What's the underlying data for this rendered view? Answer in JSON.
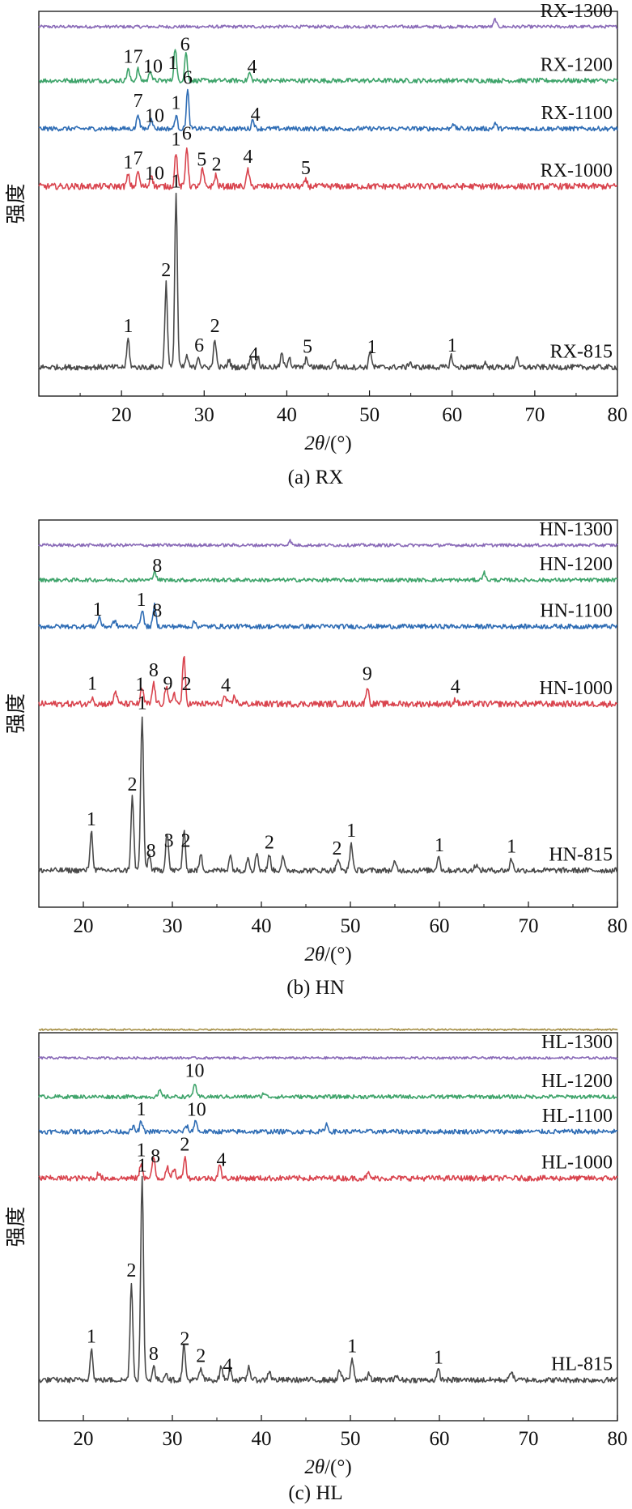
{
  "colors": {
    "ink": "#111111",
    "gray": "#4a4a4a",
    "red": "#d9444e",
    "blue": "#2f6db5",
    "green": "#3fa46b",
    "purple": "#8a6bb8",
    "tan": "#a8924a"
  },
  "chart_data": [
    {
      "type": "line",
      "panel_caption": "(a) RX",
      "ylabel": "强度",
      "xlabel_symbol": "2θ",
      "xlabel_unit": "/(°)",
      "xlim": [
        10,
        80
      ],
      "xticks": [
        20,
        30,
        40,
        50,
        60,
        70,
        80
      ],
      "series": [
        {
          "name": "RX-1300",
          "color": "purple",
          "base": 0.04,
          "scale": 0.0,
          "noise": 0.004,
          "peaks": [
            {
              "x": 65.2,
              "h": 0.02
            }
          ]
        },
        {
          "name": "RX-1200",
          "color": "green",
          "base": 0.18,
          "scale": 1.0,
          "noise": 0.006,
          "peaks": [
            {
              "x": 20.8,
              "h": 0.03
            },
            {
              "x": 22.0,
              "h": 0.03
            },
            {
              "x": 23.5,
              "h": 0.028
            },
            {
              "x": 26.5,
              "h": 0.085
            },
            {
              "x": 27.8,
              "h": 0.075
            },
            {
              "x": 35.5,
              "h": 0.02
            }
          ]
        },
        {
          "name": "RX-1100",
          "color": "blue",
          "base": 0.305,
          "scale": 1.0,
          "noise": 0.006,
          "peaks": [
            {
              "x": 22.0,
              "h": 0.04
            },
            {
              "x": 23.6,
              "h": 0.03
            },
            {
              "x": 26.6,
              "h": 0.035
            },
            {
              "x": 28.0,
              "h": 0.1
            },
            {
              "x": 35.9,
              "h": 0.025
            },
            {
              "x": 60.1,
              "h": 0.015
            },
            {
              "x": 65.2,
              "h": 0.015
            }
          ]
        },
        {
          "name": "RX-1000",
          "color": "red",
          "base": 0.455,
          "scale": 1.0,
          "noise": 0.008,
          "peaks": [
            {
              "x": 20.8,
              "h": 0.03
            },
            {
              "x": 22.0,
              "h": 0.04
            },
            {
              "x": 23.6,
              "h": 0.035
            },
            {
              "x": 26.6,
              "h": 0.09
            },
            {
              "x": 27.9,
              "h": 0.105
            },
            {
              "x": 29.8,
              "h": 0.045
            },
            {
              "x": 31.4,
              "h": 0.03
            },
            {
              "x": 35.3,
              "h": 0.045
            },
            {
              "x": 42.3,
              "h": 0.015
            }
          ]
        },
        {
          "name": "RX-815",
          "color": "gray",
          "base": 0.925,
          "scale": 1.0,
          "noise": 0.007,
          "peaks": [
            {
              "x": 20.8,
              "h": 0.075
            },
            {
              "x": 25.4,
              "h": 0.22
            },
            {
              "x": 26.6,
              "h": 0.45
            },
            {
              "x": 27.9,
              "h": 0.03
            },
            {
              "x": 29.3,
              "h": 0.03
            },
            {
              "x": 31.3,
              "h": 0.075
            },
            {
              "x": 33.0,
              "h": 0.02
            },
            {
              "x": 35.6,
              "h": 0.025
            },
            {
              "x": 36.5,
              "h": 0.03
            },
            {
              "x": 39.4,
              "h": 0.035
            },
            {
              "x": 40.3,
              "h": 0.03
            },
            {
              "x": 42.4,
              "h": 0.025
            },
            {
              "x": 45.8,
              "h": 0.02
            },
            {
              "x": 50.1,
              "h": 0.045
            },
            {
              "x": 54.9,
              "h": 0.015
            },
            {
              "x": 59.9,
              "h": 0.03
            },
            {
              "x": 64.0,
              "h": 0.012
            },
            {
              "x": 67.8,
              "h": 0.025
            }
          ]
        }
      ],
      "annotations": [
        {
          "series": "RX-1200",
          "items": [
            {
              "x": 20.8,
              "t": "1"
            },
            {
              "x": 22.0,
              "t": "7"
            },
            {
              "x": 23.8,
              "t": "10"
            },
            {
              "x": 26.2,
              "t": "1"
            },
            {
              "x": 27.7,
              "t": "6"
            },
            {
              "x": 35.8,
              "t": "4"
            }
          ]
        },
        {
          "series": "RX-1100",
          "items": [
            {
              "x": 22.0,
              "t": "7"
            },
            {
              "x": 24.0,
              "t": "10"
            },
            {
              "x": 26.6,
              "t": "1"
            },
            {
              "x": 28.0,
              "t": "6"
            },
            {
              "x": 36.2,
              "t": "4"
            }
          ]
        },
        {
          "series": "RX-1000",
          "items": [
            {
              "x": 20.8,
              "t": "1"
            },
            {
              "x": 22.0,
              "t": "7"
            },
            {
              "x": 24.0,
              "t": "10"
            },
            {
              "x": 26.6,
              "t": "1"
            },
            {
              "x": 27.9,
              "t": "6"
            },
            {
              "x": 29.7,
              "t": "5"
            },
            {
              "x": 31.5,
              "t": "2"
            },
            {
              "x": 35.3,
              "t": "4"
            },
            {
              "x": 42.3,
              "t": "5"
            }
          ]
        },
        {
          "series": "RX-815",
          "items": [
            {
              "x": 20.8,
              "t": "1"
            },
            {
              "x": 25.4,
              "t": "2"
            },
            {
              "x": 26.6,
              "t": "1"
            },
            {
              "x": 29.4,
              "t": "6"
            },
            {
              "x": 31.3,
              "t": "2"
            },
            {
              "x": 36.0,
              "t": "4"
            },
            {
              "x": 42.5,
              "t": "5"
            },
            {
              "x": 50.3,
              "t": "1"
            },
            {
              "x": 60.0,
              "t": "1"
            }
          ]
        }
      ]
    },
    {
      "type": "line",
      "panel_caption": "(b) HN",
      "ylabel": "强度",
      "xlabel_symbol": "2θ",
      "xlabel_unit": "/(°)",
      "xlim": [
        15,
        80
      ],
      "xticks": [
        20,
        30,
        40,
        50,
        60,
        70,
        80
      ],
      "series": [
        {
          "name": "HN-1300",
          "color": "purple",
          "base": 0.065,
          "scale": 0.0,
          "noise": 0.004,
          "peaks": [
            {
              "x": 43.2,
              "h": 0.012
            }
          ]
        },
        {
          "name": "HN-1200",
          "color": "green",
          "base": 0.155,
          "scale": 1.0,
          "noise": 0.005,
          "peaks": [
            {
              "x": 28.0,
              "h": 0.025
            },
            {
              "x": 65.0,
              "h": 0.02
            }
          ]
        },
        {
          "name": "HN-1100",
          "color": "blue",
          "base": 0.275,
          "scale": 1.0,
          "noise": 0.006,
          "peaks": [
            {
              "x": 21.8,
              "h": 0.025
            },
            {
              "x": 23.5,
              "h": 0.015
            },
            {
              "x": 26.6,
              "h": 0.045
            },
            {
              "x": 28.0,
              "h": 0.055
            },
            {
              "x": 32.5,
              "h": 0.012
            }
          ]
        },
        {
          "name": "HN-1000",
          "color": "red",
          "base": 0.475,
          "scale": 1.0,
          "noise": 0.008,
          "peaks": [
            {
              "x": 21.0,
              "h": 0.02
            },
            {
              "x": 23.6,
              "h": 0.035
            },
            {
              "x": 26.6,
              "h": 0.04
            },
            {
              "x": 27.9,
              "h": 0.055
            },
            {
              "x": 29.3,
              "h": 0.045
            },
            {
              "x": 30.2,
              "h": 0.03
            },
            {
              "x": 31.3,
              "h": 0.12
            },
            {
              "x": 35.9,
              "h": 0.02
            },
            {
              "x": 37.0,
              "h": 0.02
            },
            {
              "x": 51.9,
              "h": 0.045
            },
            {
              "x": 61.8,
              "h": 0.012
            }
          ]
        },
        {
          "name": "HN-815",
          "color": "gray",
          "base": 0.905,
          "scale": 1.0,
          "noise": 0.007,
          "peaks": [
            {
              "x": 20.9,
              "h": 0.1
            },
            {
              "x": 25.5,
              "h": 0.19
            },
            {
              "x": 26.6,
              "h": 0.4
            },
            {
              "x": 27.4,
              "h": 0.04
            },
            {
              "x": 29.4,
              "h": 0.1
            },
            {
              "x": 31.3,
              "h": 0.1
            },
            {
              "x": 33.2,
              "h": 0.04
            },
            {
              "x": 36.5,
              "h": 0.04
            },
            {
              "x": 38.5,
              "h": 0.035
            },
            {
              "x": 39.5,
              "h": 0.045
            },
            {
              "x": 40.9,
              "h": 0.04
            },
            {
              "x": 42.4,
              "h": 0.035
            },
            {
              "x": 48.6,
              "h": 0.03
            },
            {
              "x": 50.1,
              "h": 0.07
            },
            {
              "x": 55.0,
              "h": 0.02
            },
            {
              "x": 59.9,
              "h": 0.04
            },
            {
              "x": 64.1,
              "h": 0.015
            },
            {
              "x": 68.1,
              "h": 0.03
            }
          ]
        }
      ],
      "annotations": [
        {
          "series": "HN-1200",
          "items": [
            {
              "x": 28.3,
              "t": "8"
            }
          ]
        },
        {
          "series": "HN-1100",
          "items": [
            {
              "x": 21.6,
              "t": "1"
            },
            {
              "x": 26.5,
              "t": "1"
            },
            {
              "x": 28.3,
              "t": "8"
            }
          ]
        },
        {
          "series": "HN-1000",
          "items": [
            {
              "x": 21.0,
              "t": "1"
            },
            {
              "x": 26.4,
              "t": "1"
            },
            {
              "x": 27.9,
              "t": "8"
            },
            {
              "x": 29.5,
              "t": "9"
            },
            {
              "x": 31.6,
              "t": "2"
            },
            {
              "x": 36.0,
              "t": "4"
            },
            {
              "x": 51.9,
              "t": "9"
            },
            {
              "x": 61.8,
              "t": "4"
            }
          ]
        },
        {
          "series": "HN-815",
          "items": [
            {
              "x": 20.9,
              "t": "1"
            },
            {
              "x": 25.5,
              "t": "2"
            },
            {
              "x": 26.6,
              "t": "1"
            },
            {
              "x": 27.6,
              "t": "8"
            },
            {
              "x": 29.6,
              "t": "3"
            },
            {
              "x": 31.5,
              "t": "2"
            },
            {
              "x": 40.9,
              "t": "2"
            },
            {
              "x": 48.5,
              "t": "2"
            },
            {
              "x": 50.1,
              "t": "1"
            },
            {
              "x": 60.0,
              "t": "1"
            },
            {
              "x": 68.1,
              "t": "1"
            }
          ]
        }
      ]
    },
    {
      "type": "line",
      "panel_caption": "(c) HL",
      "ylabel": "强度",
      "xlabel_symbol": "2θ",
      "xlabel_unit": "/(°)",
      "xlim": [
        15,
        80
      ],
      "xticks": [
        20,
        30,
        40,
        50,
        60,
        70,
        80
      ],
      "series": [
        {
          "name": "",
          "color": "tan",
          "base": -0.008,
          "scale": 0.0,
          "noise": 0.002,
          "peaks": []
        },
        {
          "name": "HL-1300",
          "color": "purple",
          "base": 0.065,
          "scale": 0.0,
          "noise": 0.003,
          "peaks": []
        },
        {
          "name": "HL-1200",
          "color": "green",
          "base": 0.165,
          "scale": 1.0,
          "noise": 0.005,
          "peaks": [
            {
              "x": 28.6,
              "h": 0.015
            },
            {
              "x": 32.5,
              "h": 0.035
            },
            {
              "x": 40.3,
              "h": 0.01
            }
          ]
        },
        {
          "name": "HL-1100",
          "color": "blue",
          "base": 0.255,
          "scale": 1.0,
          "noise": 0.006,
          "peaks": [
            {
              "x": 25.6,
              "h": 0.012
            },
            {
              "x": 26.5,
              "h": 0.025
            },
            {
              "x": 31.6,
              "h": 0.015
            },
            {
              "x": 32.6,
              "h": 0.03
            },
            {
              "x": 47.3,
              "h": 0.02
            }
          ]
        },
        {
          "name": "HL-1000",
          "color": "red",
          "base": 0.375,
          "scale": 1.0,
          "noise": 0.007,
          "peaks": [
            {
              "x": 21.7,
              "h": 0.012
            },
            {
              "x": 26.5,
              "h": 0.04
            },
            {
              "x": 27.9,
              "h": 0.055
            },
            {
              "x": 29.4,
              "h": 0.03
            },
            {
              "x": 30.2,
              "h": 0.025
            },
            {
              "x": 31.4,
              "h": 0.055
            },
            {
              "x": 35.3,
              "h": 0.035
            },
            {
              "x": 52.0,
              "h": 0.012
            }
          ]
        },
        {
          "name": "HL-815",
          "color": "gray",
          "base": 0.895,
          "scale": 1.0,
          "noise": 0.007,
          "peaks": [
            {
              "x": 20.9,
              "h": 0.08
            },
            {
              "x": 25.4,
              "h": 0.25
            },
            {
              "x": 26.6,
              "h": 0.52
            },
            {
              "x": 27.9,
              "h": 0.035
            },
            {
              "x": 29.3,
              "h": 0.02
            },
            {
              "x": 31.3,
              "h": 0.09
            },
            {
              "x": 33.2,
              "h": 0.03
            },
            {
              "x": 35.5,
              "h": 0.035
            },
            {
              "x": 36.5,
              "h": 0.03
            },
            {
              "x": 38.6,
              "h": 0.035
            },
            {
              "x": 40.9,
              "h": 0.025
            },
            {
              "x": 48.8,
              "h": 0.025
            },
            {
              "x": 50.2,
              "h": 0.055
            },
            {
              "x": 52.1,
              "h": 0.015
            },
            {
              "x": 55.1,
              "h": 0.012
            },
            {
              "x": 59.9,
              "h": 0.025
            },
            {
              "x": 68.1,
              "h": 0.025
            }
          ]
        }
      ],
      "annotations": [
        {
          "series": "HL-1200",
          "items": [
            {
              "x": 32.5,
              "t": "10"
            }
          ]
        },
        {
          "series": "HL-1100",
          "items": [
            {
              "x": 26.5,
              "t": "1"
            },
            {
              "x": 32.7,
              "t": "10"
            }
          ]
        },
        {
          "series": "HL-1000",
          "items": [
            {
              "x": 26.5,
              "t": "1"
            },
            {
              "x": 28.1,
              "t": "8"
            },
            {
              "x": 31.4,
              "t": "2"
            },
            {
              "x": 35.5,
              "t": "4"
            }
          ]
        },
        {
          "series": "HL-815",
          "items": [
            {
              "x": 20.9,
              "t": "1"
            },
            {
              "x": 25.4,
              "t": "2"
            },
            {
              "x": 26.6,
              "t": "1"
            },
            {
              "x": 27.9,
              "t": "8"
            },
            {
              "x": 31.4,
              "t": "2"
            },
            {
              "x": 33.2,
              "t": "2"
            },
            {
              "x": 36.2,
              "t": "4"
            },
            {
              "x": 50.2,
              "t": "1"
            },
            {
              "x": 59.9,
              "t": "1"
            }
          ]
        }
      ]
    }
  ]
}
